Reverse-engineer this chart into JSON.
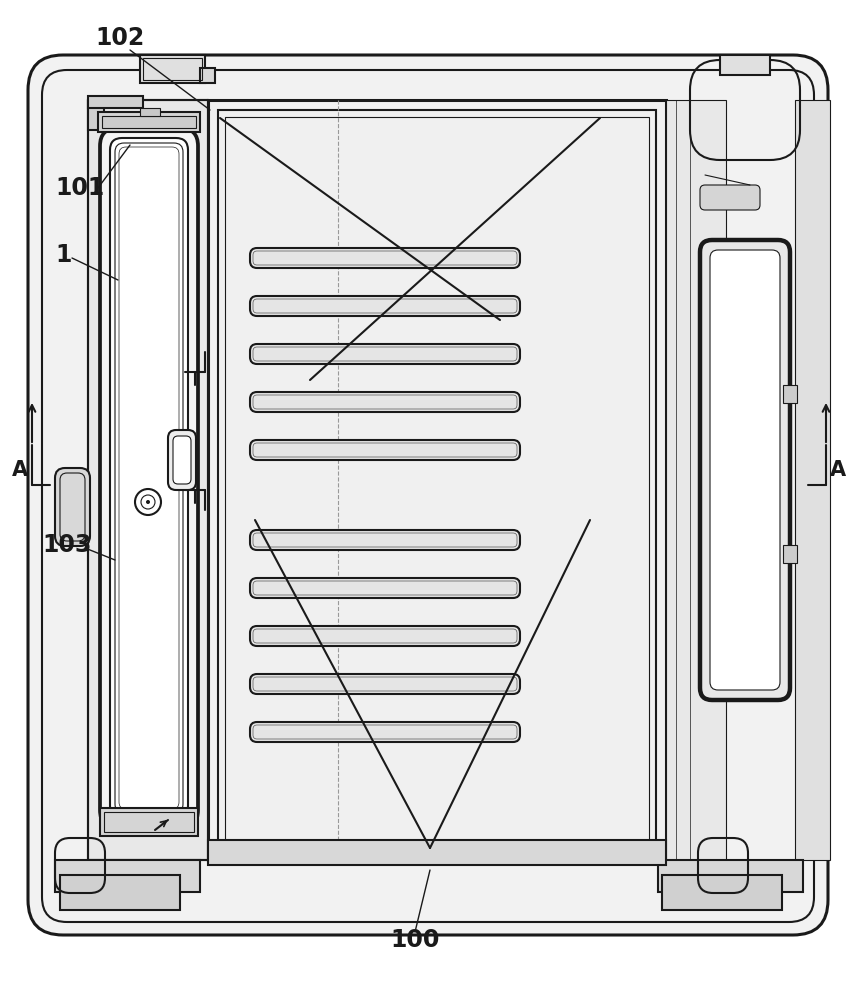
{
  "bg_color": "#ffffff",
  "line_color": "#1a1a1a",
  "mid_line_color": "#555555",
  "light_line_color": "#999999",
  "label_color": "#1a1a1a",
  "figsize": [
    8.58,
    10.0
  ],
  "dpi": 100,
  "lw_thick": 2.2,
  "lw_main": 1.5,
  "lw_thin": 0.8,
  "lw_hair": 0.5
}
